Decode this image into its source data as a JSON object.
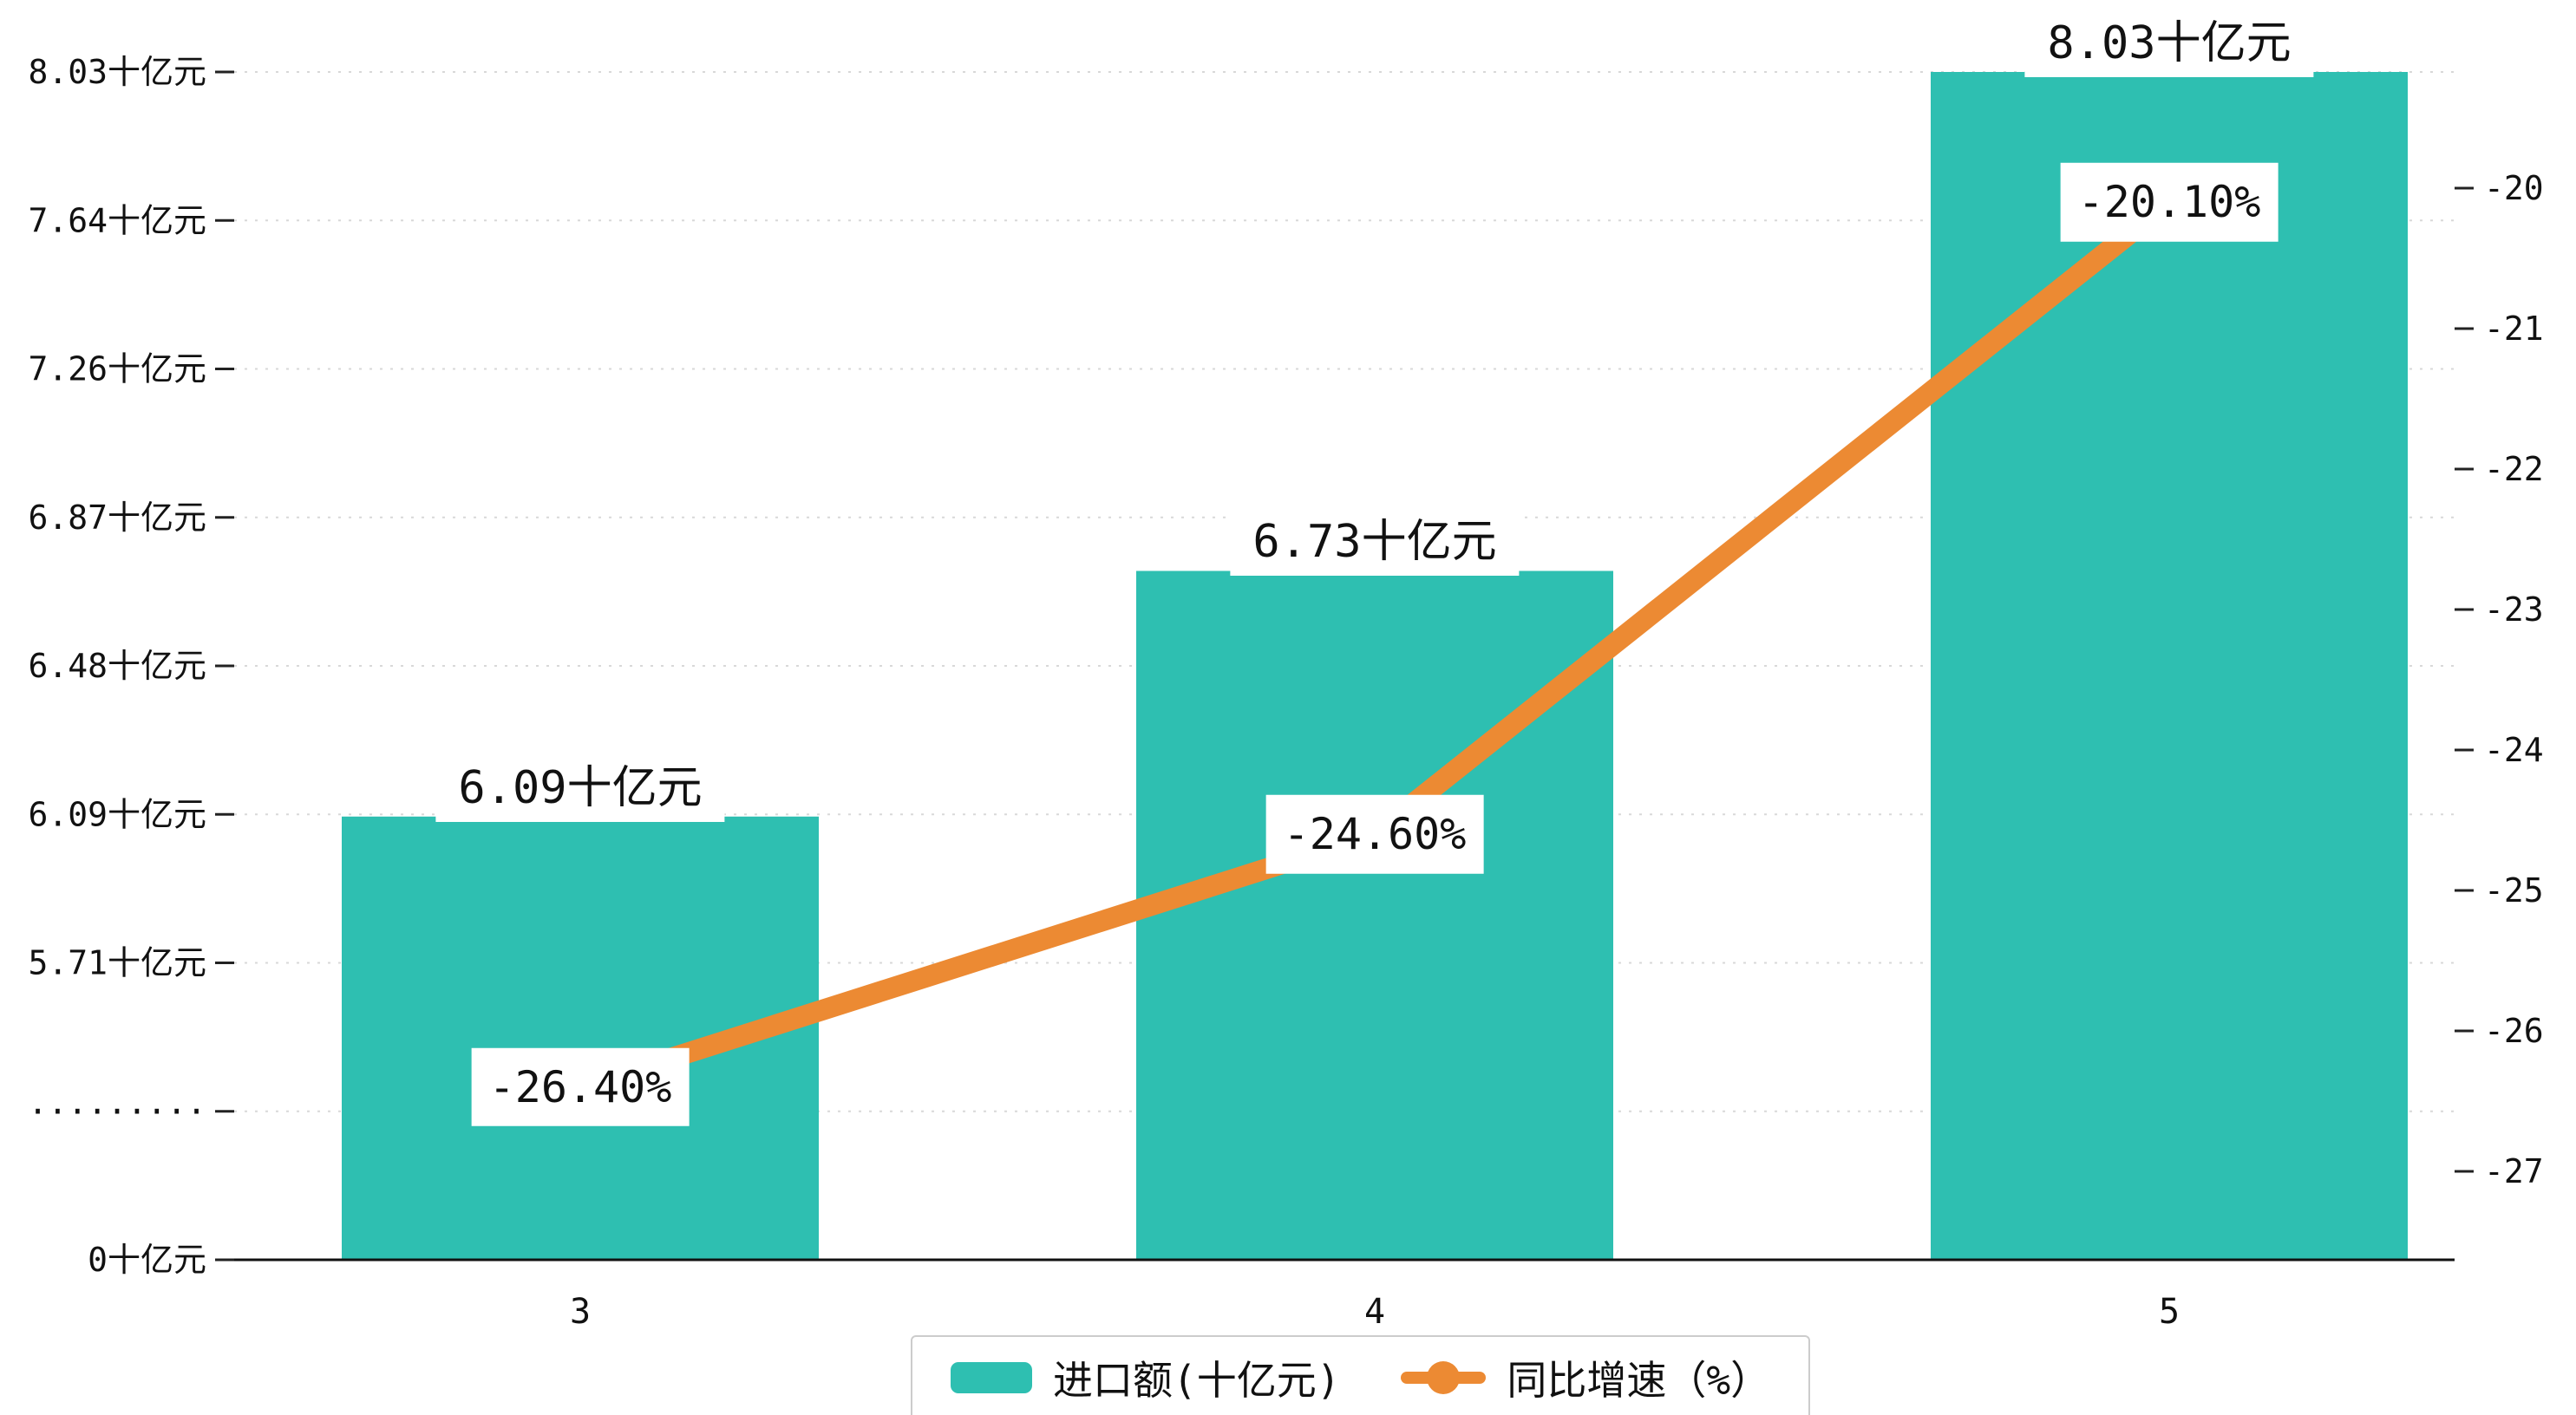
{
  "chart_data": {
    "type": "bar",
    "subtype": "bar+line combo, dual y-axis, broken left axis",
    "title": "",
    "categories": [
      "3",
      "4",
      "5"
    ],
    "series": [
      {
        "name": "进口额(十亿元)",
        "type": "bar",
        "color": "#2ebfb1",
        "values": [
          6.09,
          6.73,
          8.03
        ],
        "value_labels": [
          "6.09十亿元",
          "6.73十亿元",
          "8.03十亿元"
        ]
      },
      {
        "name": "同比增速（%）",
        "type": "line",
        "color": "#ec8a33",
        "values": [
          -26.4,
          -24.6,
          -20.1
        ],
        "value_labels": [
          "-26.40%",
          "-24.60%",
          "-20.10%"
        ]
      }
    ],
    "left_axis": {
      "unit": "十亿元",
      "broken_axis": true,
      "tick_labels": [
        "8.03十亿元",
        "7.64十亿元",
        "7.26十亿元",
        "6.87十亿元",
        "6.48十亿元",
        "6.09十亿元",
        "5.71十亿元",
        "·········",
        "0十亿元"
      ]
    },
    "right_axis": {
      "unit": "%",
      "tick_labels": [
        "-20",
        "-21",
        "-22",
        "-23",
        "-24",
        "-25",
        "-26",
        "-27"
      ],
      "tick_values": [
        -20,
        -21,
        -22,
        -23,
        -24,
        -25,
        -26,
        -27
      ]
    },
    "x_axis": {
      "tick_labels": [
        "3",
        "4",
        "5"
      ]
    },
    "legend": {
      "position": "bottom",
      "items": [
        "进口额(十亿元)",
        "同比增速（%）"
      ]
    },
    "grid": "dotted horizontal gridlines at left-axis ticks",
    "colors": {
      "bar": "#2ebfb1",
      "line": "#ec8a33",
      "axis": "#111111",
      "gridline": "#d8d8d8",
      "legend_border": "#cccccc",
      "background": "#ffffff"
    }
  }
}
